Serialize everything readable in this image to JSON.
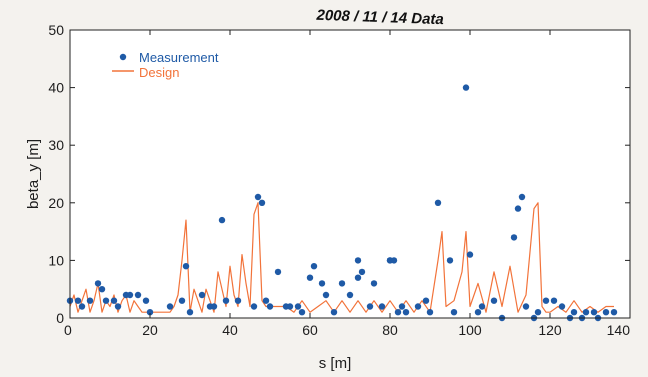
{
  "chart_data": {
    "type": "scatter",
    "title": "2008 / 11 / 14 Data",
    "xlabel": "s [m]",
    "ylabel": "beta_y [m]",
    "xlim": [
      0,
      140
    ],
    "ylim": [
      0,
      50
    ],
    "x_ticks": [
      "0",
      "20",
      "40",
      "60",
      "80",
      "100",
      "120",
      "140"
    ],
    "y_ticks": [
      "0",
      "10",
      "20",
      "30",
      "40",
      "50"
    ],
    "legend": {
      "placement": "top-left",
      "entries": [
        "Measurement",
        "Design"
      ]
    },
    "colors": {
      "measurement": "#1f5aa6",
      "design": "#f2733a",
      "axes": "#222222",
      "background": "#ffffff"
    },
    "series": [
      {
        "name": "Measurement",
        "kind": "scatter",
        "x": [
          0,
          2,
          3,
          5,
          7,
          8,
          9,
          11,
          12,
          14,
          15,
          17,
          19,
          20,
          25,
          28,
          29,
          30,
          33,
          35,
          36,
          38,
          39,
          42,
          46,
          47,
          48,
          49,
          50,
          52,
          54,
          55,
          57,
          58,
          60,
          61,
          63,
          64,
          66,
          68,
          70,
          72,
          72,
          73,
          75,
          76,
          78,
          80,
          80,
          81,
          82,
          83,
          84,
          87,
          89,
          90,
          92,
          95,
          96,
          99,
          100,
          102,
          103,
          106,
          108,
          111,
          112,
          113,
          114,
          116,
          117,
          119,
          121,
          123,
          125,
          126,
          128,
          129,
          131,
          132,
          134,
          136
        ],
        "y": [
          3,
          3,
          2,
          3,
          6,
          5,
          3,
          3,
          2,
          4,
          4,
          4,
          3,
          1,
          2,
          3,
          9,
          1,
          4,
          2,
          2,
          17,
          3,
          3,
          2,
          21,
          20,
          3,
          2,
          8,
          2,
          2,
          2,
          1,
          7,
          9,
          6,
          4,
          1,
          6,
          4,
          7,
          10,
          8,
          2,
          6,
          2,
          10,
          10,
          10,
          1,
          2,
          1,
          2,
          3,
          1,
          20,
          10,
          1,
          40,
          11,
          1,
          2,
          3,
          0,
          14,
          19,
          21,
          2,
          0,
          1,
          3,
          3,
          2,
          0,
          1,
          0,
          1,
          1,
          0,
          1,
          1
        ]
      },
      {
        "name": "Design",
        "kind": "line",
        "x": [
          0,
          1,
          2,
          3,
          4,
          5,
          6,
          7,
          8,
          9,
          10,
          11,
          12,
          13,
          14,
          15,
          16,
          17,
          18,
          19,
          20,
          21,
          22,
          23,
          24,
          25,
          26,
          27,
          28,
          29,
          30,
          31,
          32,
          33,
          34,
          35,
          36,
          37,
          38,
          39,
          40,
          41,
          42,
          43,
          44,
          45,
          46,
          47,
          48,
          49,
          50,
          52,
          54,
          56,
          58,
          60,
          62,
          64,
          66,
          68,
          70,
          72,
          74,
          76,
          78,
          80,
          82,
          84,
          86,
          88,
          90,
          92,
          93,
          94,
          96,
          98,
          99,
          100,
          101,
          102,
          104,
          106,
          108,
          110,
          112,
          114,
          116,
          117,
          118,
          119,
          120,
          122,
          124,
          126,
          128,
          130,
          132,
          134,
          136
        ],
        "y": [
          2,
          4,
          1,
          3,
          5,
          1,
          3,
          6,
          1,
          3,
          2,
          4,
          1,
          3,
          4,
          1,
          3,
          2,
          1,
          1,
          1,
          1,
          1,
          1,
          1,
          1,
          2,
          4,
          10,
          17,
          1,
          5,
          3,
          1,
          5,
          3,
          1,
          8,
          5,
          2,
          9,
          4,
          2,
          11,
          6,
          2,
          18,
          20,
          3,
          2,
          2,
          2,
          2,
          1,
          3,
          1,
          2,
          3,
          1,
          3,
          1,
          3,
          1,
          3,
          1,
          3,
          1,
          3,
          1,
          3,
          1,
          10,
          15,
          2,
          3,
          8,
          15,
          2,
          4,
          6,
          1,
          8,
          2,
          9,
          1,
          4,
          19,
          20,
          2,
          1,
          1,
          2,
          1,
          3,
          1,
          2,
          1,
          2,
          2
        ]
      }
    ]
  }
}
